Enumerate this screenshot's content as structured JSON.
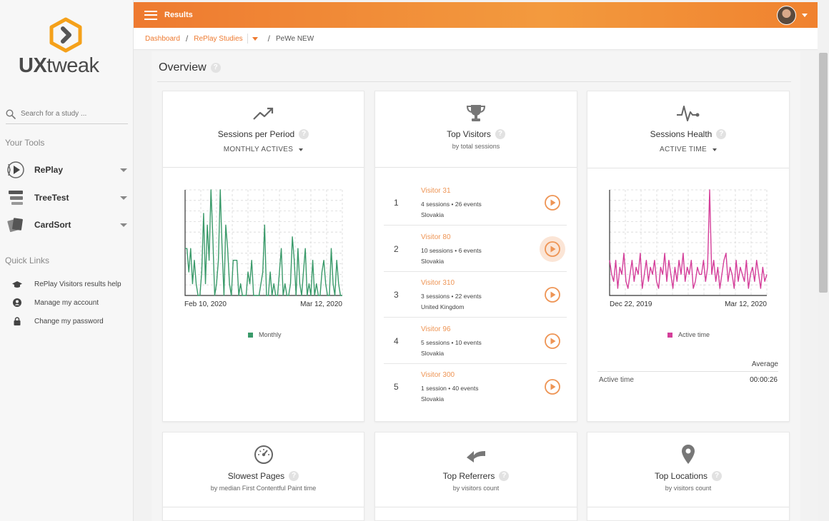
{
  "app": {
    "logo_text_bold": "UX",
    "logo_text_rest": "tweak",
    "accent_color": "#ee7a30"
  },
  "sidebar": {
    "search_placeholder": "Search for a study ...",
    "tools_title": "Your Tools",
    "tools": [
      {
        "label": "RePlay",
        "icon": "replay-icon"
      },
      {
        "label": "TreeTest",
        "icon": "treetest-icon"
      },
      {
        "label": "CardSort",
        "icon": "cardsort-icon"
      }
    ],
    "quick_links_title": "Quick Links",
    "quick_links": [
      {
        "label": "RePlay Visitors results help",
        "icon": "graduation-cap-icon"
      },
      {
        "label": "Manage my account",
        "icon": "user-circle-icon"
      },
      {
        "label": "Change my password",
        "icon": "lock-icon"
      }
    ]
  },
  "topbar": {
    "title": "Results"
  },
  "breadcrumb": {
    "items": [
      "Dashboard",
      "RePlay Studies",
      "PeWe NEW"
    ],
    "separator": "/"
  },
  "overview": {
    "title": "Overview",
    "help": "?"
  },
  "cards": {
    "sessions_per_period": {
      "title": "Sessions per Period",
      "dropdown": "MONTHLY ACTIVES",
      "x_start": "Feb 10, 2020",
      "x_end": "Mar 12, 2020",
      "legend": "Monthly",
      "color": "#3a9a6a"
    },
    "top_visitors": {
      "title": "Top Visitors",
      "subtitle": "by total sessions",
      "visitors": [
        {
          "rank": "1",
          "name": "Visitor 31",
          "meta": "4 sessions • 26 events",
          "location": "Slovakia"
        },
        {
          "rank": "2",
          "name": "Visitor 80",
          "meta": "10 sessions • 6 events",
          "location": "Slovakia"
        },
        {
          "rank": "3",
          "name": "Visitor 310",
          "meta": "3 sessions • 22 events",
          "location": "United Kingdom"
        },
        {
          "rank": "4",
          "name": "Visitor 96",
          "meta": "5 sessions • 10 events",
          "location": "Slovakia"
        },
        {
          "rank": "5",
          "name": "Visitor 300",
          "meta": "1 session • 40 events",
          "location": "Slovakia"
        }
      ]
    },
    "sessions_health": {
      "title": "Sessions Health",
      "dropdown": "ACTIVE TIME",
      "x_start": "Dec 22, 2019",
      "x_end": "Mar 12, 2020",
      "legend": "Active time",
      "color": "#d43f9a",
      "average_header": "Average",
      "average_label": "Active time",
      "average_value": "00:00:26"
    },
    "slowest_pages": {
      "title": "Slowest Pages",
      "subtitle": "by median First Contentful Paint time"
    },
    "top_referrers": {
      "title": "Top Referrers",
      "subtitle": "by visitors count"
    },
    "top_locations": {
      "title": "Top Locations",
      "subtitle": "by visitors count"
    }
  },
  "chart_data": [
    {
      "type": "line",
      "series": [
        {
          "name": "Monthly",
          "values": [
            4,
            4,
            2,
            4,
            1,
            3,
            1,
            0,
            0,
            2,
            7,
            1,
            6,
            3,
            9,
            5,
            0,
            1,
            3,
            9,
            4,
            0,
            6,
            4,
            1,
            0,
            3,
            3,
            3,
            0,
            1,
            0,
            0,
            0,
            2,
            1,
            3,
            0,
            0,
            0,
            0,
            1,
            2,
            6,
            0,
            0,
            2,
            0,
            1,
            0,
            0,
            2,
            4,
            0,
            1,
            0,
            0,
            1,
            5,
            3,
            0,
            4,
            1,
            0,
            2,
            4,
            0,
            1,
            0,
            3,
            0,
            1,
            0,
            0,
            2,
            3,
            1,
            0,
            0,
            4,
            1,
            0,
            3,
            1,
            0,
            0
          ]
        }
      ],
      "x_labels": [
        "Feb 10, 2020",
        "Mar 12, 2020"
      ]
    },
    {
      "type": "line",
      "series": [
        {
          "name": "Active time",
          "values": [
            5,
            3,
            2,
            5,
            1,
            4,
            3,
            6,
            2,
            1,
            3,
            5,
            2,
            4,
            3,
            6,
            1,
            3,
            5,
            2,
            4,
            3,
            5,
            2,
            1,
            4,
            3,
            6,
            2,
            5,
            3,
            1,
            4,
            2,
            5,
            3,
            6,
            2,
            4,
            3,
            5,
            1,
            2,
            4,
            3,
            3,
            5,
            2,
            4,
            15,
            3,
            5,
            2,
            4,
            1,
            3,
            5,
            6,
            2,
            4,
            3,
            1,
            5,
            2,
            4,
            3,
            2,
            5,
            1,
            3,
            4,
            2,
            5,
            3,
            1,
            4,
            2,
            3
          ]
        }
      ],
      "x_labels": [
        "Dec 22, 2019",
        "Mar 12, 2020"
      ]
    }
  ]
}
